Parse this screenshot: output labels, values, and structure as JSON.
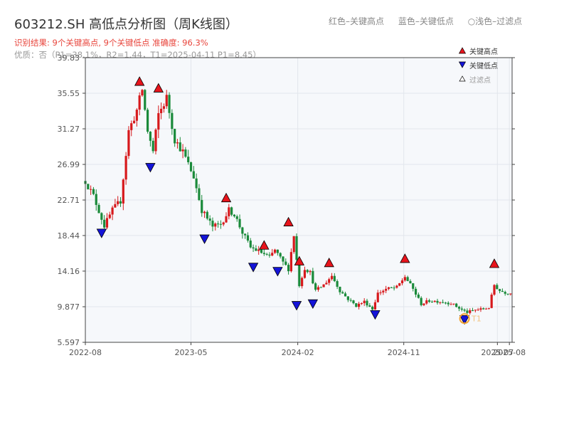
{
  "header": {
    "title": "603212.SH 高低点分析图（周K线图）",
    "legend_red": "红色–关键高点",
    "legend_blue": "蓝色–关键低点",
    "legend_faint_symbol": "○",
    "legend_faint": "浅色–过滤点",
    "result": "识别结果: 9个关键高点, 9个关键低点   准确度: 96.3%",
    "quality": "优质：否（P1=38.1%，R2=1.44，T1=2025-04-11 P1=8.45）"
  },
  "colors": {
    "up": "#d7191c",
    "down": "#1a8a3a",
    "high_marker": "#e8141c",
    "low_marker": "#1414d8",
    "t1_ring": "#f0a030",
    "grid": "#e2e6ec",
    "plot_bg": "#f6f8fb"
  },
  "chart_data": {
    "type": "candlestick",
    "title": "603212.SH 高低点分析图（周K线图）",
    "ylim": [
      5.597,
      39.83
    ],
    "yticks": [
      5.597,
      9.877,
      14.16,
      18.44,
      22.71,
      26.99,
      31.27,
      35.55,
      39.83
    ],
    "ytick_labels": [
      "5.597",
      "9.877",
      "14.16",
      "18.44",
      "22.71",
      "26.99",
      "31.27",
      "35.55",
      "39.83"
    ],
    "xlim": [
      "2022-08-01",
      "2025-08-08"
    ],
    "xticks": [
      "2022-08-01",
      "2023-05-01",
      "2024-02-01",
      "2024-11-01",
      "2025-07-01",
      "2025-08-01"
    ],
    "xtick_labels": [
      "2022-08",
      "2023-05",
      "2024-02",
      "2024-11",
      "2025-07",
      "2025-08"
    ],
    "legend": [
      "关键高点",
      "关键低点",
      "过滤点"
    ],
    "close_path": [
      [
        "2022-08-01",
        25.0
      ],
      [
        "2022-08-22",
        23.2
      ],
      [
        "2022-09-19",
        19.6
      ],
      [
        "2022-10-10",
        21.5
      ],
      [
        "2022-10-31",
        22.6
      ],
      [
        "2022-11-21",
        31.0
      ],
      [
        "2022-12-12",
        33.5
      ],
      [
        "2022-12-26",
        36.0
      ],
      [
        "2023-01-09",
        31.0
      ],
      [
        "2023-01-23",
        28.5
      ],
      [
        "2023-02-06",
        33.0
      ],
      [
        "2023-02-27",
        35.0
      ],
      [
        "2023-03-20",
        30.0
      ],
      [
        "2023-04-10",
        28.5
      ],
      [
        "2023-05-08",
        25.5
      ],
      [
        "2023-05-29",
        21.5
      ],
      [
        "2023-06-26",
        19.5
      ],
      [
        "2023-07-17",
        19.8
      ],
      [
        "2023-08-07",
        21.5
      ],
      [
        "2023-08-21",
        21.0
      ],
      [
        "2023-09-11",
        18.8
      ],
      [
        "2023-10-02",
        17.0
      ],
      [
        "2023-10-30",
        16.4
      ],
      [
        "2023-11-20",
        15.8
      ],
      [
        "2023-12-04",
        16.7
      ],
      [
        "2023-12-25",
        15.2
      ],
      [
        "2024-01-08",
        14.4
      ],
      [
        "2024-01-22",
        18.5
      ],
      [
        "2024-02-05",
        12.5
      ],
      [
        "2024-02-19",
        14.5
      ],
      [
        "2024-03-04",
        14.0
      ],
      [
        "2024-03-18",
        11.8
      ],
      [
        "2024-04-08",
        12.5
      ],
      [
        "2024-04-29",
        13.6
      ],
      [
        "2024-05-20",
        11.8
      ],
      [
        "2024-06-10",
        10.8
      ],
      [
        "2024-07-01",
        10.0
      ],
      [
        "2024-07-22",
        10.5
      ],
      [
        "2024-08-12",
        9.6
      ],
      [
        "2024-08-26",
        11.5
      ],
      [
        "2024-09-16",
        12.0
      ],
      [
        "2024-10-14",
        12.2
      ],
      [
        "2024-11-04",
        13.5
      ],
      [
        "2024-11-25",
        12.0
      ],
      [
        "2024-12-16",
        10.2
      ],
      [
        "2025-01-06",
        10.6
      ],
      [
        "2025-02-03",
        10.5
      ],
      [
        "2025-03-03",
        10.3
      ],
      [
        "2025-03-31",
        9.5
      ],
      [
        "2025-04-14",
        9.2
      ],
      [
        "2025-05-05",
        9.5
      ],
      [
        "2025-05-26",
        9.6
      ],
      [
        "2025-06-09",
        9.8
      ],
      [
        "2025-06-23",
        12.5
      ],
      [
        "2025-07-07",
        11.8
      ],
      [
        "2025-07-21",
        11.6
      ],
      [
        "2025-08-04",
        11.5
      ]
    ],
    "key_highs": [
      {
        "date": "2022-12-19",
        "value": 36.4
      },
      {
        "date": "2023-02-06",
        "value": 35.6
      },
      {
        "date": "2023-07-31",
        "value": 22.4
      },
      {
        "date": "2023-11-06",
        "value": 16.7
      },
      {
        "date": "2024-01-08",
        "value": 19.5
      },
      {
        "date": "2024-02-05",
        "value": 14.8
      },
      {
        "date": "2024-04-22",
        "value": 14.6
      },
      {
        "date": "2024-11-04",
        "value": 15.1
      },
      {
        "date": "2025-06-23",
        "value": 14.5
      }
    ],
    "key_lows": [
      {
        "date": "2022-09-12",
        "value": 19.3
      },
      {
        "date": "2023-01-16",
        "value": 27.2
      },
      {
        "date": "2023-06-05",
        "value": 18.6
      },
      {
        "date": "2023-10-09",
        "value": 15.2
      },
      {
        "date": "2023-12-11",
        "value": 14.7
      },
      {
        "date": "2024-01-29",
        "value": 10.6
      },
      {
        "date": "2024-03-11",
        "value": 10.8
      },
      {
        "date": "2024-08-19",
        "value": 9.5
      },
      {
        "date": "2025-04-07",
        "value": 8.9
      }
    ],
    "t1": {
      "label": "T1",
      "date": "2025-04-07",
      "value": 8.45
    }
  }
}
